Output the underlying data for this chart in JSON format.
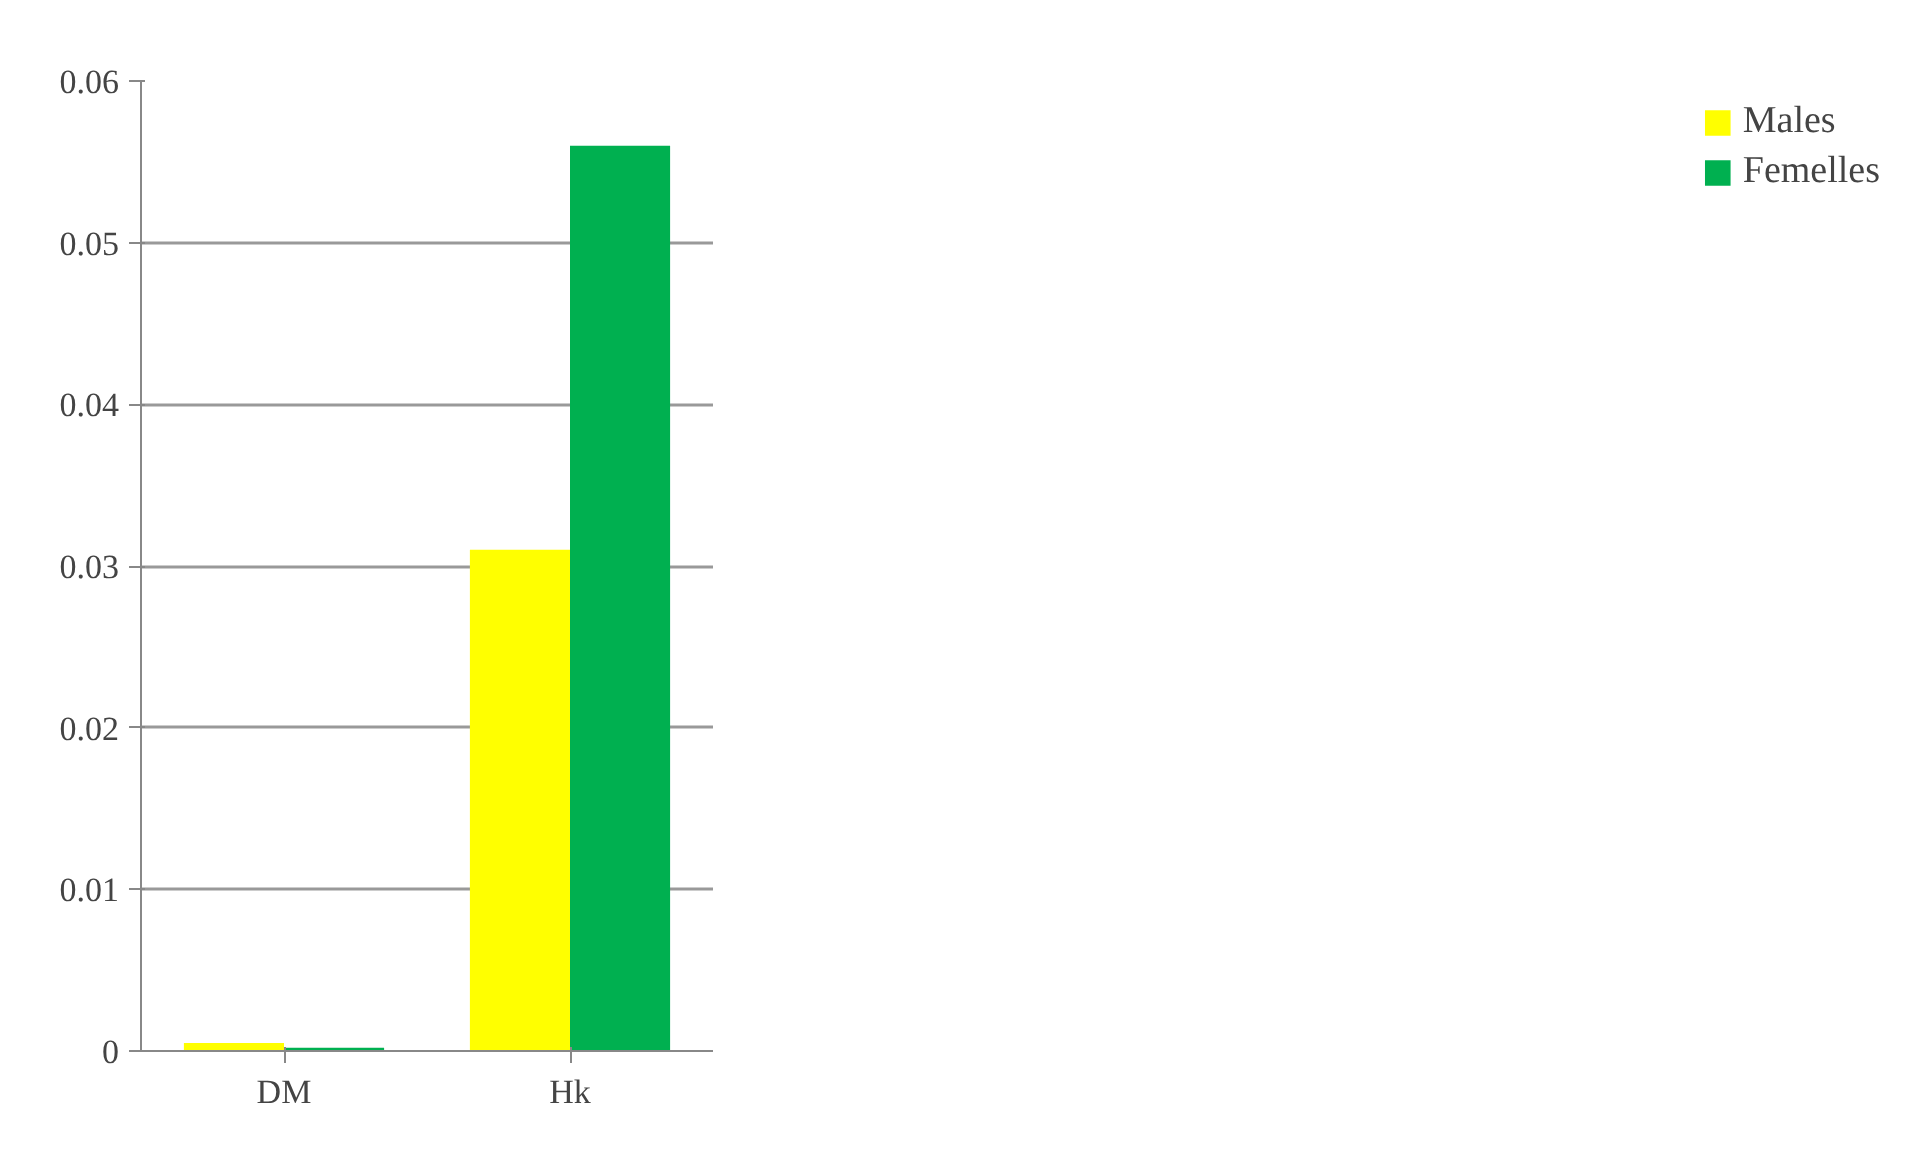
{
  "chart_data": {
    "type": "bar",
    "categories": [
      "DM",
      "Hk"
    ],
    "series": [
      {
        "name": "Males",
        "color": "#ffff00",
        "values": [
          0.0005,
          0.031
        ]
      },
      {
        "name": "Femelles",
        "color": "#00b050",
        "values": [
          0.0002,
          0.056
        ]
      }
    ],
    "ylim": [
      0,
      0.06
    ],
    "yticks": [
      {
        "value": 0,
        "label": "0"
      },
      0.01,
      0.02,
      0.03,
      0.04,
      0.05,
      0.06
    ],
    "grid": "y",
    "legend": "right"
  }
}
